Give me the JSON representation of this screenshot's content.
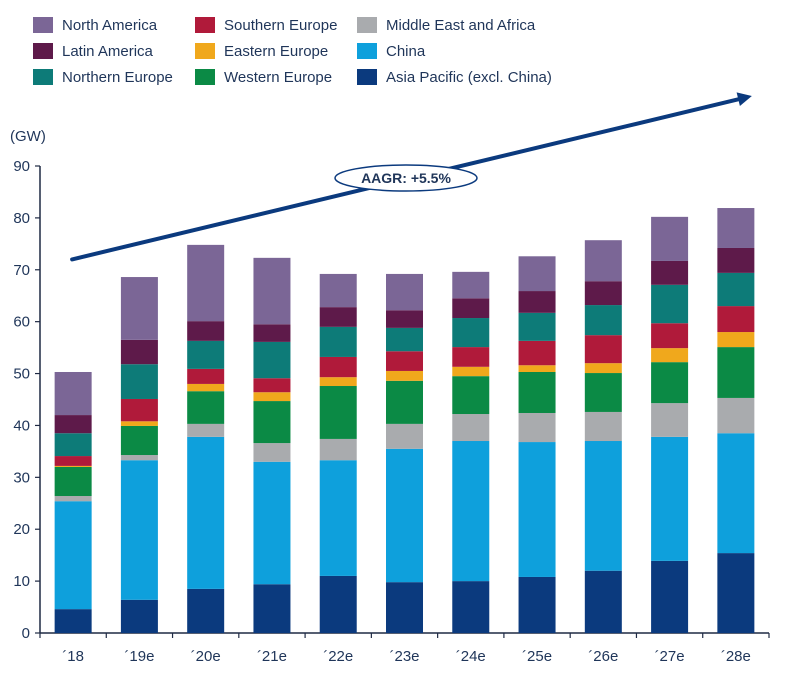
{
  "chart_data": {
    "type": "bar",
    "stacked": true,
    "title": "",
    "xlabel": "",
    "ylabel": "(GW)",
    "ylim": [
      0,
      90
    ],
    "yticks": [
      0,
      10,
      20,
      30,
      40,
      50,
      60,
      70,
      80,
      90
    ],
    "grid": false,
    "legend_position": "top-left",
    "categories": [
      "´18",
      "´19e",
      "´20e",
      "´21e",
      "´22e",
      "´23e",
      "´24e",
      "´25e",
      "´26e",
      "´27e",
      "´28e"
    ],
    "series": [
      {
        "name": "Asia Pacific (excl. China)",
        "color": "#0b3a7e",
        "values": [
          4.6,
          6.4,
          8.5,
          9.4,
          11.0,
          9.8,
          10.0,
          10.8,
          12.0,
          13.9,
          15.4
        ]
      },
      {
        "name": "China",
        "color": "#0ea0dc",
        "values": [
          20.8,
          26.9,
          29.3,
          23.6,
          22.3,
          25.7,
          27.0,
          26.0,
          25.0,
          23.9,
          23.1
        ]
      },
      {
        "name": "Middle East and Africa",
        "color": "#a9abae",
        "values": [
          1.0,
          1.0,
          2.5,
          3.6,
          4.1,
          4.8,
          5.2,
          5.6,
          5.6,
          6.5,
          6.8
        ]
      },
      {
        "name": "Western Europe",
        "color": "#0b8a45",
        "values": [
          5.6,
          5.6,
          6.3,
          8.1,
          10.2,
          8.3,
          7.3,
          7.9,
          7.5,
          7.9,
          9.8
        ]
      },
      {
        "name": "Eastern Europe",
        "color": "#f0a81c",
        "values": [
          0.2,
          0.9,
          1.4,
          1.7,
          1.7,
          1.9,
          1.8,
          1.3,
          1.9,
          2.7,
          2.9
        ]
      },
      {
        "name": "Southern Europe",
        "color": "#b01a3a",
        "values": [
          1.9,
          4.3,
          2.9,
          2.7,
          3.9,
          3.8,
          3.8,
          4.7,
          5.4,
          4.8,
          5.0
        ]
      },
      {
        "name": "Northern Europe",
        "color": "#0d7b78",
        "values": [
          4.4,
          6.7,
          5.4,
          7.0,
          5.8,
          4.5,
          5.6,
          5.4,
          5.8,
          7.4,
          6.4
        ]
      },
      {
        "name": "Latin America",
        "color": "#5e1a4a",
        "values": [
          3.5,
          4.7,
          3.8,
          3.4,
          3.8,
          3.4,
          3.8,
          4.2,
          4.6,
          4.6,
          4.8
        ]
      },
      {
        "name": "North America",
        "color": "#7b6696",
        "values": [
          8.3,
          12.1,
          14.7,
          12.8,
          6.4,
          7.0,
          5.1,
          6.7,
          7.9,
          8.5,
          7.7
        ]
      }
    ],
    "totals": [
      50.3,
      68.6,
      74.8,
      72.3,
      69.2,
      69.2,
      69.6,
      72.6,
      75.7,
      80.2,
      81.9
    ],
    "legend_order": [
      "North America",
      "Latin America",
      "Northern Europe",
      "Southern Europe",
      "Eastern Europe",
      "Western Europe",
      "Middle East and Africa",
      "China",
      "Asia Pacific (excl. China)"
    ],
    "annotations": [
      {
        "type": "trend-arrow",
        "label": "AAGR: +5.5%",
        "from_value": 72,
        "to_value": 103.5,
        "from_category": "´18",
        "to_category": "´28e"
      }
    ]
  },
  "colors": {
    "axis": "#1f2a44",
    "text": "#1f3559",
    "arrow": "#0b3a7e"
  }
}
